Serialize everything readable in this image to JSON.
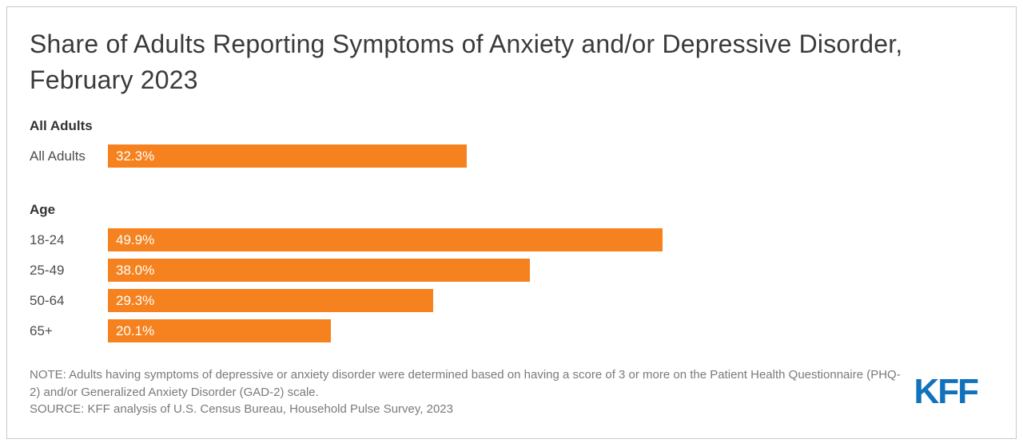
{
  "chart": {
    "title": "Share of Adults Reporting Symptoms of Anxiety and/or Depressive Disorder, February 2023"
  },
  "chart_data": {
    "type": "bar",
    "orientation": "horizontal",
    "title": "Share of Adults Reporting Symptoms of Anxiety and/or Depressive Disorder, February 2023",
    "xlim": [
      0,
      100
    ],
    "grid": false,
    "bar_color": "#f5821f",
    "value_label_color": "#ffffff",
    "groups": [
      {
        "header": "All Adults",
        "rows": [
          {
            "label": "All Adults",
            "value": 32.3,
            "value_label": "32.3%"
          }
        ]
      },
      {
        "header": "Age",
        "rows": [
          {
            "label": "18-24",
            "value": 49.9,
            "value_label": "49.9%"
          },
          {
            "label": "25-49",
            "value": 38.0,
            "value_label": "38.0%"
          },
          {
            "label": "50-64",
            "value": 29.3,
            "value_label": "29.3%"
          },
          {
            "label": "65+",
            "value": 20.1,
            "value_label": "20.1%"
          }
        ]
      }
    ]
  },
  "footer": {
    "note": "NOTE: Adults having symptoms of depressive or anxiety disorder were determined based on having a score of 3 or more on the Patient Health Questionnaire (PHQ-2) and/or Generalized Anxiety Disorder (GAD-2) scale.",
    "source": "SOURCE: KFF analysis of U.S. Census Bureau, Household Pulse Survey, 2023",
    "logo_text": "KFF",
    "logo_color": "#1072bc"
  }
}
